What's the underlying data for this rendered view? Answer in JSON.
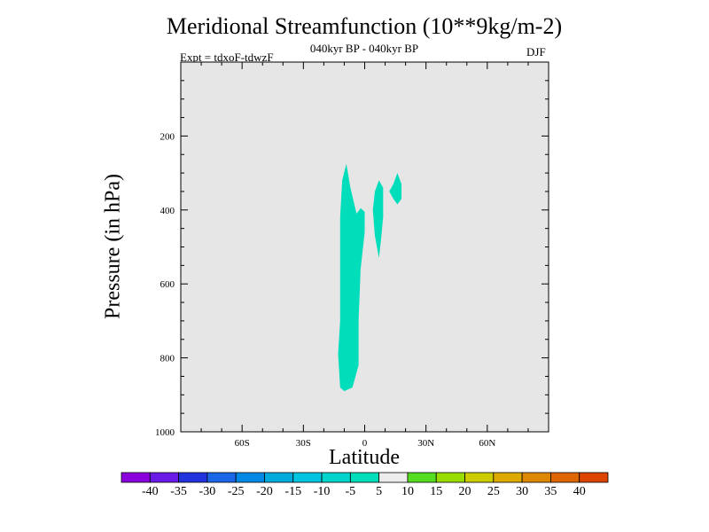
{
  "chart_data": {
    "type": "contour",
    "title": "Meridional Streamfunction (10**9kg/m-2)",
    "subtitle": "040kyr BP - 040kyr BP",
    "experiment": "Expt = tdxoF-tdwzF",
    "season": "DJF",
    "xlabel": "Latitude",
    "ylabel": "Pressure (in hPa)",
    "xlim": [
      -90,
      90
    ],
    "ylim": [
      1000,
      0
    ],
    "y_inverted": true,
    "x_ticks": [
      {
        "value": -60,
        "label": "60S"
      },
      {
        "value": -30,
        "label": "30S"
      },
      {
        "value": 0,
        "label": "0"
      },
      {
        "value": 30,
        "label": "30N"
      },
      {
        "value": 60,
        "label": "60N"
      }
    ],
    "y_ticks": [
      {
        "value": 200,
        "label": "200"
      },
      {
        "value": 400,
        "label": "400"
      },
      {
        "value": 600,
        "label": "600"
      },
      {
        "value": 800,
        "label": "800"
      },
      {
        "value": 1000,
        "label": "1000"
      }
    ],
    "background_color": "#e6e6e6",
    "shaded_regions": [
      {
        "level_range": [
          -10,
          -5
        ],
        "color": "#00ddbb",
        "points": [
          [
            -9,
            275
          ],
          [
            -7,
            340
          ],
          [
            -4,
            410
          ],
          [
            -2,
            395
          ],
          [
            0,
            405
          ],
          [
            0,
            460
          ],
          [
            -2,
            560
          ],
          [
            -3,
            700
          ],
          [
            -3,
            820
          ],
          [
            -6,
            880
          ],
          [
            -10,
            890
          ],
          [
            -12,
            880
          ],
          [
            -13,
            790
          ],
          [
            -12,
            700
          ],
          [
            -12,
            540
          ],
          [
            -12,
            420
          ],
          [
            -11,
            320
          ]
        ]
      },
      {
        "level_range": [
          -10,
          -5
        ],
        "color": "#00ddbb",
        "points": [
          [
            7,
            320
          ],
          [
            9,
            340
          ],
          [
            9,
            420
          ],
          [
            8,
            480
          ],
          [
            7,
            530
          ],
          [
            5,
            470
          ],
          [
            4,
            400
          ],
          [
            5,
            350
          ]
        ]
      },
      {
        "level_range": [
          -10,
          -5
        ],
        "color": "#00ddbb",
        "points": [
          [
            16,
            300
          ],
          [
            18,
            330
          ],
          [
            18,
            370
          ],
          [
            16,
            385
          ],
          [
            14,
            370
          ],
          [
            12,
            350
          ],
          [
            14,
            330
          ]
        ]
      }
    ],
    "colorbar": {
      "levels": [
        "-40",
        "-35",
        "-30",
        "-25",
        "-20",
        "-15",
        "-10",
        "-5",
        "5",
        "10",
        "15",
        "20",
        "25",
        "30",
        "35",
        "40"
      ],
      "colors": [
        "#8a00dd",
        "#6a1ae6",
        "#2233dd",
        "#1a66e6",
        "#0088e6",
        "#00aadd",
        "#00c4e0",
        "#00d4cc",
        "#00ddbb",
        "#ececec",
        "#55dd22",
        "#99dd00",
        "#cccc00",
        "#ddaa00",
        "#dd8800",
        "#dd6600",
        "#dd4400"
      ]
    }
  }
}
